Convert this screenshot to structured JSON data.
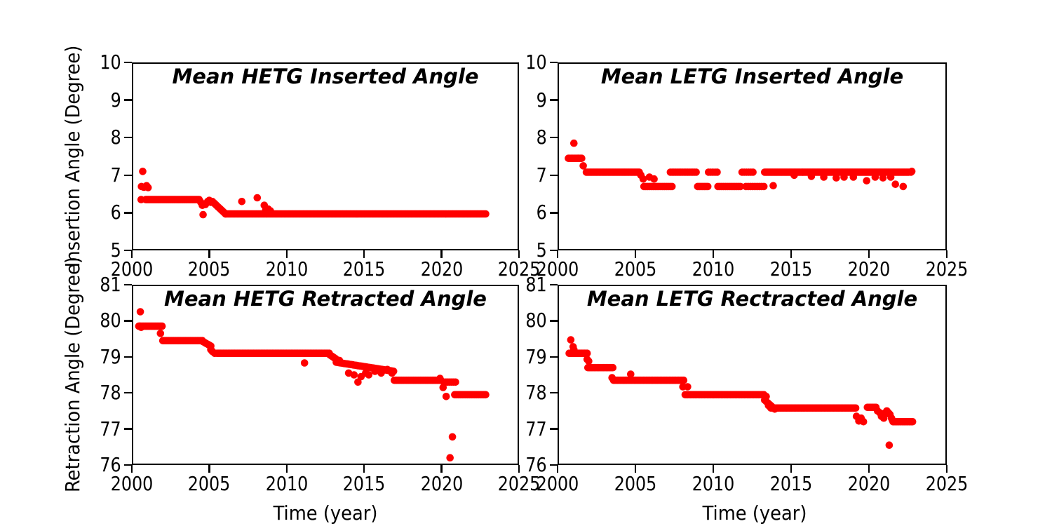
{
  "figure": {
    "background": "#ffffff",
    "axis_color": "#000000",
    "marker_color": "#ff0000"
  },
  "axis_labels": {
    "top_y": "Insertion Angle (Degree)",
    "bottom_y": "Retraction Angle (Degree)",
    "x": "Time (year)"
  },
  "chart_data": [
    {
      "id": "hetg-inserted",
      "type": "scatter",
      "title": "Mean HETG Inserted Angle",
      "xlabel": "",
      "ylabel": "Insertion Angle (Degree)",
      "xlim": [
        2000,
        2025
      ],
      "ylim": [
        5,
        10
      ],
      "xticks": [
        2000,
        2005,
        2010,
        2015,
        2020,
        2025
      ],
      "xtick_labels": [
        "2000",
        "2005",
        "2010",
        "2015",
        "2020",
        "2025"
      ],
      "yticks": [
        10,
        9,
        8,
        7,
        6,
        5
      ],
      "ytick_labels": [
        "10",
        "9",
        "8",
        "7",
        "6",
        "5"
      ],
      "runs_format": "[x_start, x_end, y_start, y_end, n_points]",
      "runs": [
        [
          2000.9,
          2004.35,
          6.35,
          6.35,
          50
        ],
        [
          2005.2,
          2006.05,
          6.3,
          5.97,
          12
        ],
        [
          2006.05,
          2022.85,
          5.97,
          5.97,
          200
        ]
      ],
      "points": [
        [
          2000.6,
          6.35
        ],
        [
          2000.62,
          6.7
        ],
        [
          2000.7,
          7.1
        ],
        [
          2000.78,
          6.68
        ],
        [
          2000.95,
          6.72
        ],
        [
          2001.05,
          6.67
        ],
        [
          2004.45,
          6.28
        ],
        [
          2004.55,
          6.2
        ],
        [
          2004.6,
          5.95
        ],
        [
          2004.75,
          6.22
        ],
        [
          2004.9,
          6.3
        ],
        [
          2005.0,
          6.33
        ],
        [
          2005.1,
          6.28
        ],
        [
          2007.1,
          6.3
        ],
        [
          2008.1,
          6.4
        ],
        [
          2008.55,
          6.2
        ],
        [
          2008.65,
          6.08
        ],
        [
          2008.8,
          6.1
        ],
        [
          2008.95,
          6.05
        ]
      ]
    },
    {
      "id": "letg-inserted",
      "type": "scatter",
      "title": "Mean LETG Inserted Angle",
      "xlabel": "",
      "ylabel": "Insertion Angle (Degree)",
      "xlim": [
        2000,
        2025
      ],
      "ylim": [
        5,
        10
      ],
      "xticks": [
        2000,
        2005,
        2010,
        2015,
        2020,
        2025
      ],
      "xtick_labels": [
        "2000",
        "2005",
        "2010",
        "2015",
        "2020",
        "2025"
      ],
      "yticks": [
        10,
        9,
        8,
        7,
        6,
        5
      ],
      "ytick_labels": [
        "10",
        "9",
        "8",
        "7",
        "6",
        "5"
      ],
      "runs_format": "[x_start, x_end, y_start, y_end, n_points]",
      "runs": [
        [
          2000.7,
          2001.55,
          7.45,
          7.45,
          11
        ],
        [
          2001.85,
          2005.25,
          7.08,
          7.08,
          42
        ],
        [
          2005.55,
          2007.35,
          6.7,
          6.7,
          16
        ],
        [
          2007.25,
          2008.9,
          7.08,
          7.08,
          16
        ],
        [
          2009.0,
          2009.65,
          6.7,
          6.7,
          7
        ],
        [
          2009.7,
          2010.25,
          7.08,
          7.08,
          5
        ],
        [
          2010.3,
          2011.75,
          6.7,
          6.7,
          13
        ],
        [
          2011.85,
          2012.55,
          7.08,
          7.08,
          6
        ],
        [
          2012.1,
          2013.25,
          6.7,
          6.7,
          9
        ],
        [
          2013.3,
          2022.55,
          7.08,
          7.08,
          120
        ]
      ],
      "points": [
        [
          2001.05,
          7.85
        ],
        [
          2001.35,
          7.45
        ],
        [
          2001.65,
          7.25
        ],
        [
          2005.35,
          7.0
        ],
        [
          2005.5,
          6.9
        ],
        [
          2005.9,
          6.95
        ],
        [
          2006.2,
          6.9
        ],
        [
          2013.85,
          6.72
        ],
        [
          2015.2,
          7.0
        ],
        [
          2016.3,
          6.97
        ],
        [
          2017.1,
          6.95
        ],
        [
          2017.9,
          6.93
        ],
        [
          2018.4,
          6.95
        ],
        [
          2019.0,
          6.95
        ],
        [
          2019.85,
          6.85
        ],
        [
          2020.4,
          6.95
        ],
        [
          2020.9,
          6.93
        ],
        [
          2021.4,
          6.95
        ],
        [
          2021.7,
          6.76
        ],
        [
          2022.2,
          6.7
        ],
        [
          2022.7,
          7.08
        ],
        [
          2022.75,
          7.1
        ]
      ]
    },
    {
      "id": "hetg-retracted",
      "type": "scatter",
      "title": "Mean HETG Retracted Angle",
      "xlabel": "Time (year)",
      "ylabel": "Retraction Angle (Degree)",
      "xlim": [
        2000,
        2025
      ],
      "ylim": [
        76,
        81
      ],
      "xticks": [
        2000,
        2005,
        2010,
        2015,
        2020,
        2025
      ],
      "xtick_labels": [
        "2000",
        "2005",
        "2010",
        "2015",
        "2020",
        "2025"
      ],
      "yticks": [
        81,
        80,
        79,
        78,
        77,
        76
      ],
      "ytick_labels": [
        "81",
        "80",
        "79",
        "78",
        "77",
        "76"
      ],
      "runs_format": "[x_start, x_end, y_start, y_end, n_points]",
      "runs": [
        [
          2000.45,
          2001.95,
          79.85,
          79.85,
          20
        ],
        [
          2002.0,
          2004.55,
          79.45,
          79.45,
          34
        ],
        [
          2004.6,
          2005.1,
          79.42,
          79.3,
          6
        ],
        [
          2005.5,
          2012.75,
          79.1,
          79.1,
          90
        ],
        [
          2012.8,
          2013.15,
          79.05,
          78.95,
          5
        ],
        [
          2013.2,
          2016.9,
          78.85,
          78.6,
          40
        ],
        [
          2016.95,
          2019.95,
          78.35,
          78.35,
          40
        ],
        [
          2020.15,
          2020.9,
          78.3,
          78.3,
          7
        ],
        [
          2020.85,
          2022.85,
          77.95,
          77.95,
          28
        ]
      ],
      "points": [
        [
          2000.55,
          80.25
        ],
        [
          2000.5,
          79.85
        ],
        [
          2000.6,
          79.82
        ],
        [
          2001.85,
          79.65
        ],
        [
          2005.1,
          79.2
        ],
        [
          2005.2,
          79.15
        ],
        [
          2005.35,
          79.1
        ],
        [
          2011.15,
          78.83
        ],
        [
          2013.4,
          78.9
        ],
        [
          2014.0,
          78.55
        ],
        [
          2014.35,
          78.5
        ],
        [
          2014.6,
          78.3
        ],
        [
          2014.8,
          78.45
        ],
        [
          2015.1,
          78.55
        ],
        [
          2015.3,
          78.5
        ],
        [
          2015.7,
          78.6
        ],
        [
          2016.1,
          78.55
        ],
        [
          2016.5,
          78.65
        ],
        [
          2016.8,
          78.55
        ],
        [
          2019.9,
          78.4
        ],
        [
          2020.1,
          78.15
        ],
        [
          2020.3,
          77.9
        ],
        [
          2020.55,
          76.2
        ],
        [
          2020.7,
          76.78
        ]
      ]
    },
    {
      "id": "letg-retracted",
      "type": "scatter",
      "title": "Mean LETG Rectracted Angle",
      "xlabel": "Time (year)",
      "ylabel": "Retraction Angle (Degree)",
      "xlim": [
        2000,
        2025
      ],
      "ylim": [
        76,
        81
      ],
      "xticks": [
        2000,
        2005,
        2010,
        2015,
        2020,
        2025
      ],
      "xtick_labels": [
        "2000",
        "2005",
        "2010",
        "2015",
        "2020",
        "2025"
      ],
      "yticks": [
        81,
        80,
        79,
        78,
        77,
        76
      ],
      "ytick_labels": [
        "81",
        "80",
        "79",
        "78",
        "77",
        "76"
      ],
      "runs_format": "[x_start, x_end, y_start, y_end, n_points]",
      "runs": [
        [
          2000.75,
          2001.9,
          79.1,
          79.1,
          15
        ],
        [
          2001.95,
          2003.55,
          78.7,
          78.7,
          20
        ],
        [
          2003.6,
          2008.1,
          78.35,
          78.35,
          55
        ],
        [
          2008.2,
          2013.25,
          77.95,
          77.95,
          62
        ],
        [
          2013.3,
          2013.95,
          77.8,
          77.55,
          7
        ],
        [
          2013.7,
          2019.15,
          77.58,
          77.58,
          66
        ],
        [
          2019.9,
          2020.45,
          77.6,
          77.6,
          6
        ],
        [
          2021.55,
          2022.8,
          77.2,
          77.2,
          18
        ]
      ],
      "points": [
        [
          2000.85,
          79.47
        ],
        [
          2001.0,
          79.28
        ],
        [
          2001.05,
          79.2
        ],
        [
          2001.9,
          78.93
        ],
        [
          2002.0,
          78.88
        ],
        [
          2003.5,
          78.42
        ],
        [
          2004.7,
          78.52
        ],
        [
          2008.05,
          78.17
        ],
        [
          2008.35,
          78.17
        ],
        [
          2013.4,
          77.9
        ],
        [
          2013.55,
          77.65
        ],
        [
          2019.2,
          77.35
        ],
        [
          2019.35,
          77.22
        ],
        [
          2019.5,
          77.3
        ],
        [
          2019.65,
          77.2
        ],
        [
          2020.55,
          77.5
        ],
        [
          2020.7,
          77.45
        ],
        [
          2020.8,
          77.35
        ],
        [
          2020.95,
          77.3
        ],
        [
          2021.05,
          77.45
        ],
        [
          2021.15,
          77.5
        ],
        [
          2021.25,
          77.45
        ],
        [
          2021.35,
          77.4
        ],
        [
          2021.45,
          77.3
        ],
        [
          2021.5,
          77.25
        ],
        [
          2021.3,
          76.55
        ]
      ]
    }
  ]
}
